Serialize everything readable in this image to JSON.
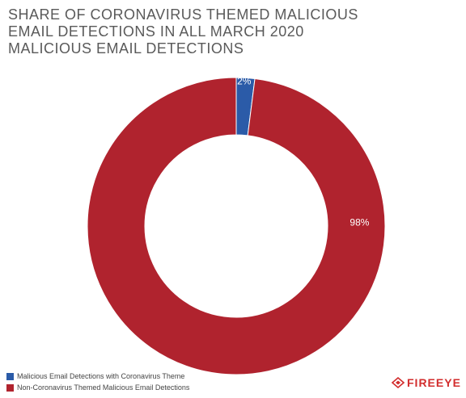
{
  "title_lines": [
    "SHARE OF CORONAVIRUS THEMED MALICIOUS",
    "EMAIL DETECTIONS IN ALL MARCH 2020",
    "MALICIOUS EMAIL DETECTIONS"
  ],
  "logo_text": "FIREEYE",
  "colors": {
    "coronavirus": "#2b5ba8",
    "non_coronavirus": "#b0232e",
    "title": "#5a5a5a"
  },
  "chart_data": {
    "type": "pie",
    "donut": true,
    "title": "SHARE OF CORONAVIRUS THEMED MALICIOUS EMAIL DETECTIONS IN ALL MARCH 2020 MALICIOUS EMAIL DETECTIONS",
    "categories": [
      "Malicious Email Detections with Coronavirus Theme",
      "Non-Coronavirus Themed Malicious Email Detections"
    ],
    "values": [
      2,
      98
    ],
    "labels": [
      "2%",
      "98%"
    ],
    "legend_position": "bottom-left"
  }
}
